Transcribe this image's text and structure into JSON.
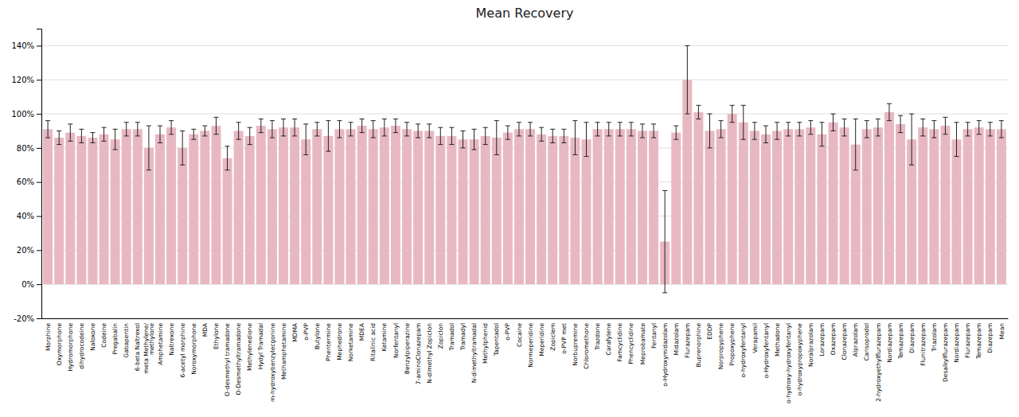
{
  "chart_data": {
    "type": "bar",
    "title": "Mean Recovery",
    "categories": [
      "Morphine",
      "Oxymorphone",
      "Hydromorphone",
      "dihydrocodeine",
      "Naloxone",
      "Codeine",
      "Pregabalin",
      "Gabapentin",
      "6-beta Naltrexol",
      "meta Methylene/\nmethylone",
      "Amphetamine",
      "Naltrexone",
      "6-acetyl morphine",
      "Noroxymorphone",
      "MDA",
      "Ethylone",
      "O-desmethyl tramadone",
      "O-Desmethyltramadone",
      "Methylenedione",
      "Hydyl Tramadal",
      "m-hydroxybenzylecgonine",
      "Methamphetamine",
      "MDMA",
      "o-PVP",
      "Butylone",
      "Phentermine",
      "Mephedrone",
      "Norketamine",
      "MDEA",
      "Ritalinic acid",
      "Ketamine",
      "Norfentanyl",
      "Benzylpiperazine",
      "7-aminoClonazepam",
      "N-dimethyl Zopiclon",
      "Zopiclon",
      "Tramadol",
      "Tramadyl",
      "N-dimethyltramadal",
      "Methylphenid",
      "Tapentadol",
      "o-PVP",
      "Cocaine",
      "Normeperidine",
      "Meperidine",
      "Zopiclem",
      "o-PVP met",
      "Norbupremine",
      "Chloromethone",
      "Trazdone",
      "Carafylene",
      "Famcyclidine",
      "Phencyclidine",
      "Meprobamate",
      "Fentanyl",
      "o-Hydroxymidazolam",
      "Midazolam",
      "Flurazepam",
      "Buprenorphine",
      "EDDP",
      "Norpropyphene",
      "Propoxyphene",
      "o-hydroxyfentanyl",
      "Verapamil",
      "o-Hydroxyfentanyl",
      "Methadone",
      "o-hydroxy-hydroxyfentanyl",
      "o-hydroxypropoxyphene",
      "Noralprazolam",
      "Lorazepam",
      "Oxazepam",
      "Clonazepam",
      "Alprazolam",
      "Carisoprodol",
      "2-hydroxyethylflurazepam",
      "Nordiazepam",
      "Temazepam",
      "Diazepam",
      "Flunitrazepam",
      "Triazolam",
      "Desalkylflurazepam",
      "Nordiazepam",
      "Flurazepam",
      "Temazepam",
      "Diazepam",
      "Mean"
    ],
    "values": [
      91,
      86,
      89,
      87,
      86,
      88,
      85,
      91,
      91,
      80,
      88,
      92,
      80,
      88,
      90,
      93,
      74,
      90,
      87,
      93,
      91,
      92,
      92,
      85,
      91,
      87,
      91,
      91,
      93,
      91,
      92,
      93,
      91,
      90,
      90,
      87,
      87,
      85,
      85,
      87,
      86,
      89,
      91,
      91,
      88,
      87,
      87,
      86,
      85,
      91,
      91,
      91,
      91,
      90,
      90,
      25,
      89,
      120,
      101,
      90,
      91,
      100,
      95,
      90,
      88,
      90,
      91,
      91,
      92,
      88,
      95,
      92,
      82,
      91,
      92,
      101,
      94,
      85,
      92,
      91,
      93,
      85,
      91,
      92,
      91,
      91
    ],
    "errors": [
      5,
      4,
      5,
      4,
      3,
      4,
      6,
      4,
      4,
      13,
      5,
      4,
      10,
      3,
      3,
      5,
      7,
      5,
      5,
      4,
      5,
      5,
      5,
      9,
      4,
      9,
      5,
      4,
      4,
      5,
      5,
      4,
      4,
      4,
      4,
      5,
      5,
      5,
      6,
      5,
      10,
      4,
      4,
      4,
      4,
      4,
      4,
      10,
      10,
      4,
      4,
      4,
      4,
      4,
      4,
      30,
      4,
      20,
      4,
      10,
      5,
      5,
      10,
      5,
      5,
      5,
      4,
      4,
      4,
      7,
      5,
      5,
      15,
      5,
      5,
      5,
      5,
      15,
      5,
      5,
      5,
      10,
      4,
      4,
      4,
      5
    ],
    "color": "#e8b8c2",
    "ylim": [
      -20,
      150
    ],
    "yticks": [
      {
        "value": -20,
        "label": "-20%"
      },
      {
        "value": 0,
        "label": "0%"
      },
      {
        "value": 20,
        "label": "20%"
      },
      {
        "value": 40,
        "label": "40%"
      },
      {
        "value": 60,
        "label": "60%"
      },
      {
        "value": 80,
        "label": "80%"
      },
      {
        "value": 100,
        "label": "100%"
      },
      {
        "value": 120,
        "label": "120%"
      },
      {
        "value": 140,
        "label": "140%"
      }
    ],
    "grid": true
  }
}
